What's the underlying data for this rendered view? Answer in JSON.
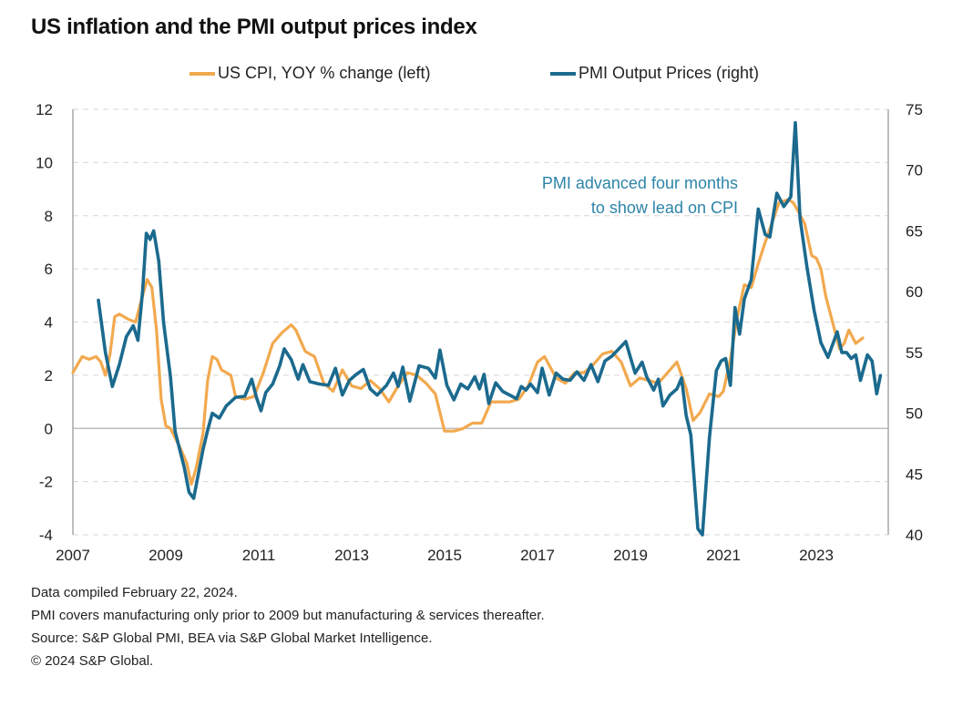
{
  "title": "US inflation and the PMI output prices index",
  "legend": [
    {
      "label": "US CPI, YOY % change (left)",
      "color": "#F2A94E"
    },
    {
      "label": "PMI Output Prices (right)",
      "color": "#1B6A8E"
    }
  ],
  "annotation": {
    "lines": [
      "PMI advanced four months",
      "to show lead on CPI"
    ],
    "color": "#2C84A8"
  },
  "footnotes": [
    "Data compiled February 22, 2024.",
    "PMI covers manufacturing only prior to 2009 but manufacturing & services thereafter.",
    "Source: S&P Global PMI, BEA via S&P Global Market Intelligence.",
    "© 2024 S&P Global."
  ],
  "chart_data": {
    "type": "line",
    "title": "US inflation and the PMI output prices index",
    "xlabel": "",
    "ylabel_left": "US CPI, YOY % change",
    "ylabel_right": "PMI Output Prices",
    "x_range": [
      2007,
      2024.6
    ],
    "x_ticks": [
      "2007",
      "2009",
      "2011",
      "2013",
      "2015",
      "2017",
      "2019",
      "2021",
      "2023"
    ],
    "ylim_left": [
      -4,
      12
    ],
    "yticks_left": [
      "12",
      "10",
      "8",
      "6",
      "4",
      "2",
      "0",
      "-2",
      "-4"
    ],
    "ylim_right": [
      40,
      75
    ],
    "yticks_right": [
      "75",
      "70",
      "65",
      "60",
      "55",
      "50",
      "45",
      "40"
    ],
    "grid": "horizontal-dashed",
    "legend_position": "top-center",
    "annotation_text": "PMI advanced four months to show lead on CPI",
    "series": [
      {
        "name": "US CPI, YOY % change (left)",
        "axis": "left",
        "color": "#F2A94E",
        "points": [
          [
            2007.0,
            2.1
          ],
          [
            2007.1,
            2.4
          ],
          [
            2007.2,
            2.7
          ],
          [
            2007.35,
            2.6
          ],
          [
            2007.5,
            2.7
          ],
          [
            2007.6,
            2.5
          ],
          [
            2007.7,
            2.0
          ],
          [
            2007.8,
            2.8
          ],
          [
            2007.9,
            4.2
          ],
          [
            2008.0,
            4.3
          ],
          [
            2008.2,
            4.1
          ],
          [
            2008.35,
            4.0
          ],
          [
            2008.5,
            5.0
          ],
          [
            2008.6,
            5.6
          ],
          [
            2008.7,
            5.3
          ],
          [
            2008.8,
            3.7
          ],
          [
            2008.9,
            1.1
          ],
          [
            2009.0,
            0.1
          ],
          [
            2009.1,
            0.0
          ],
          [
            2009.3,
            -0.7
          ],
          [
            2009.45,
            -1.3
          ],
          [
            2009.55,
            -2.1
          ],
          [
            2009.65,
            -1.5
          ],
          [
            2009.8,
            -0.2
          ],
          [
            2009.9,
            1.8
          ],
          [
            2010.0,
            2.7
          ],
          [
            2010.1,
            2.6
          ],
          [
            2010.2,
            2.2
          ],
          [
            2010.4,
            2.0
          ],
          [
            2010.5,
            1.2
          ],
          [
            2010.7,
            1.1
          ],
          [
            2010.9,
            1.2
          ],
          [
            2011.1,
            2.1
          ],
          [
            2011.3,
            3.2
          ],
          [
            2011.5,
            3.6
          ],
          [
            2011.7,
            3.9
          ],
          [
            2011.8,
            3.7
          ],
          [
            2012.0,
            2.9
          ],
          [
            2012.2,
            2.7
          ],
          [
            2012.4,
            1.7
          ],
          [
            2012.6,
            1.4
          ],
          [
            2012.8,
            2.2
          ],
          [
            2013.0,
            1.6
          ],
          [
            2013.2,
            1.5
          ],
          [
            2013.4,
            1.8
          ],
          [
            2013.6,
            1.5
          ],
          [
            2013.8,
            1.0
          ],
          [
            2014.0,
            1.6
          ],
          [
            2014.2,
            2.1
          ],
          [
            2014.4,
            2.0
          ],
          [
            2014.6,
            1.7
          ],
          [
            2014.8,
            1.3
          ],
          [
            2015.0,
            -0.1
          ],
          [
            2015.2,
            -0.1
          ],
          [
            2015.4,
            0.0
          ],
          [
            2015.6,
            0.2
          ],
          [
            2015.8,
            0.2
          ],
          [
            2016.0,
            1.0
          ],
          [
            2016.2,
            1.0
          ],
          [
            2016.4,
            1.0
          ],
          [
            2016.6,
            1.1
          ],
          [
            2016.8,
            1.6
          ],
          [
            2017.0,
            2.5
          ],
          [
            2017.15,
            2.7
          ],
          [
            2017.4,
            1.9
          ],
          [
            2017.6,
            1.7
          ],
          [
            2017.8,
            2.1
          ],
          [
            2018.0,
            2.1
          ],
          [
            2018.2,
            2.4
          ],
          [
            2018.4,
            2.8
          ],
          [
            2018.6,
            2.9
          ],
          [
            2018.8,
            2.5
          ],
          [
            2019.0,
            1.6
          ],
          [
            2019.2,
            1.9
          ],
          [
            2019.4,
            1.8
          ],
          [
            2019.6,
            1.7
          ],
          [
            2019.8,
            2.1
          ],
          [
            2020.0,
            2.5
          ],
          [
            2020.2,
            1.5
          ],
          [
            2020.35,
            0.3
          ],
          [
            2020.5,
            0.6
          ],
          [
            2020.7,
            1.3
          ],
          [
            2020.9,
            1.2
          ],
          [
            2021.0,
            1.4
          ],
          [
            2021.15,
            2.6
          ],
          [
            2021.3,
            4.2
          ],
          [
            2021.45,
            5.4
          ],
          [
            2021.6,
            5.3
          ],
          [
            2021.75,
            6.2
          ],
          [
            2021.9,
            7.0
          ],
          [
            2022.0,
            7.5
          ],
          [
            2022.2,
            8.5
          ],
          [
            2022.4,
            8.6
          ],
          [
            2022.5,
            8.5
          ],
          [
            2022.6,
            8.2
          ],
          [
            2022.75,
            7.7
          ],
          [
            2022.9,
            6.5
          ],
          [
            2023.0,
            6.4
          ],
          [
            2023.1,
            6.0
          ],
          [
            2023.2,
            5.0
          ],
          [
            2023.35,
            4.0
          ],
          [
            2023.5,
            3.0
          ],
          [
            2023.6,
            3.2
          ],
          [
            2023.7,
            3.7
          ],
          [
            2023.85,
            3.2
          ],
          [
            2024.0,
            3.4
          ]
        ]
      },
      {
        "name": "PMI Output Prices (right)",
        "axis": "right",
        "color": "#1B6A8E",
        "points": [
          [
            2007.55,
            59.3
          ],
          [
            2007.7,
            55.0
          ],
          [
            2007.85,
            52.2
          ],
          [
            2008.0,
            54.0
          ],
          [
            2008.15,
            56.3
          ],
          [
            2008.3,
            57.2
          ],
          [
            2008.4,
            56.0
          ],
          [
            2008.5,
            60.0
          ],
          [
            2008.58,
            64.8
          ],
          [
            2008.66,
            64.3
          ],
          [
            2008.74,
            65.0
          ],
          [
            2008.85,
            62.5
          ],
          [
            2008.95,
            57.5
          ],
          [
            2009.1,
            53.0
          ],
          [
            2009.2,
            48.5
          ],
          [
            2009.3,
            47.0
          ],
          [
            2009.4,
            45.5
          ],
          [
            2009.5,
            43.5
          ],
          [
            2009.6,
            43.0
          ],
          [
            2009.7,
            45.0
          ],
          [
            2009.8,
            47.0
          ],
          [
            2009.9,
            48.6
          ],
          [
            2010.0,
            50.0
          ],
          [
            2010.15,
            49.6
          ],
          [
            2010.3,
            50.6
          ],
          [
            2010.5,
            51.3
          ],
          [
            2010.7,
            51.4
          ],
          [
            2010.85,
            52.8
          ],
          [
            2010.95,
            51.3
          ],
          [
            2011.05,
            50.2
          ],
          [
            2011.15,
            51.7
          ],
          [
            2011.3,
            52.4
          ],
          [
            2011.45,
            53.9
          ],
          [
            2011.55,
            55.3
          ],
          [
            2011.7,
            54.4
          ],
          [
            2011.85,
            52.8
          ],
          [
            2011.95,
            54.0
          ],
          [
            2012.1,
            52.6
          ],
          [
            2012.3,
            52.4
          ],
          [
            2012.5,
            52.3
          ],
          [
            2012.65,
            53.7
          ],
          [
            2012.8,
            51.5
          ],
          [
            2012.95,
            52.7
          ],
          [
            2013.1,
            53.2
          ],
          [
            2013.25,
            53.6
          ],
          [
            2013.4,
            52.0
          ],
          [
            2013.55,
            51.5
          ],
          [
            2013.75,
            52.3
          ],
          [
            2013.9,
            53.3
          ],
          [
            2014.0,
            52.2
          ],
          [
            2014.1,
            53.8
          ],
          [
            2014.25,
            51.0
          ],
          [
            2014.45,
            53.9
          ],
          [
            2014.65,
            53.7
          ],
          [
            2014.8,
            52.9
          ],
          [
            2014.9,
            55.2
          ],
          [
            2015.05,
            52.3
          ],
          [
            2015.2,
            51.1
          ],
          [
            2015.35,
            52.4
          ],
          [
            2015.5,
            52.0
          ],
          [
            2015.65,
            53.0
          ],
          [
            2015.75,
            52.0
          ],
          [
            2015.85,
            53.2
          ],
          [
            2015.95,
            50.8
          ],
          [
            2016.1,
            52.5
          ],
          [
            2016.25,
            51.8
          ],
          [
            2016.4,
            51.5
          ],
          [
            2016.55,
            51.2
          ],
          [
            2016.65,
            52.2
          ],
          [
            2016.75,
            51.9
          ],
          [
            2016.85,
            52.4
          ],
          [
            2017.0,
            51.7
          ],
          [
            2017.1,
            53.7
          ],
          [
            2017.25,
            51.5
          ],
          [
            2017.4,
            53.3
          ],
          [
            2017.55,
            52.8
          ],
          [
            2017.7,
            52.7
          ],
          [
            2017.85,
            53.4
          ],
          [
            2018.0,
            52.7
          ],
          [
            2018.15,
            54.0
          ],
          [
            2018.3,
            52.6
          ],
          [
            2018.45,
            54.3
          ],
          [
            2018.6,
            54.7
          ],
          [
            2018.75,
            55.3
          ],
          [
            2018.9,
            55.9
          ],
          [
            2019.0,
            54.6
          ],
          [
            2019.1,
            53.3
          ],
          [
            2019.25,
            54.2
          ],
          [
            2019.35,
            53.0
          ],
          [
            2019.5,
            51.9
          ],
          [
            2019.6,
            52.8
          ],
          [
            2019.7,
            50.6
          ],
          [
            2019.85,
            51.5
          ],
          [
            2020.0,
            52.0
          ],
          [
            2020.1,
            52.9
          ],
          [
            2020.2,
            49.8
          ],
          [
            2020.3,
            48.2
          ],
          [
            2020.45,
            40.5
          ],
          [
            2020.55,
            40.0
          ],
          [
            2020.7,
            48.0
          ],
          [
            2020.85,
            53.5
          ],
          [
            2020.95,
            54.3
          ],
          [
            2021.05,
            54.5
          ],
          [
            2021.15,
            52.3
          ],
          [
            2021.25,
            58.7
          ],
          [
            2021.35,
            56.5
          ],
          [
            2021.45,
            59.4
          ],
          [
            2021.6,
            61.0
          ],
          [
            2021.75,
            66.8
          ],
          [
            2021.9,
            64.7
          ],
          [
            2022.0,
            64.5
          ],
          [
            2022.15,
            68.1
          ],
          [
            2022.3,
            67.0
          ],
          [
            2022.45,
            67.8
          ],
          [
            2022.55,
            73.9
          ],
          [
            2022.65,
            66.0
          ],
          [
            2022.8,
            62.0
          ],
          [
            2022.95,
            58.5
          ],
          [
            2023.1,
            55.8
          ],
          [
            2023.25,
            54.6
          ],
          [
            2023.45,
            56.7
          ],
          [
            2023.55,
            55.0
          ],
          [
            2023.65,
            55.0
          ],
          [
            2023.75,
            54.5
          ],
          [
            2023.85,
            54.8
          ],
          [
            2023.95,
            52.7
          ],
          [
            2024.1,
            54.8
          ],
          [
            2024.2,
            54.3
          ],
          [
            2024.3,
            51.6
          ],
          [
            2024.38,
            53.1
          ]
        ]
      }
    ]
  }
}
